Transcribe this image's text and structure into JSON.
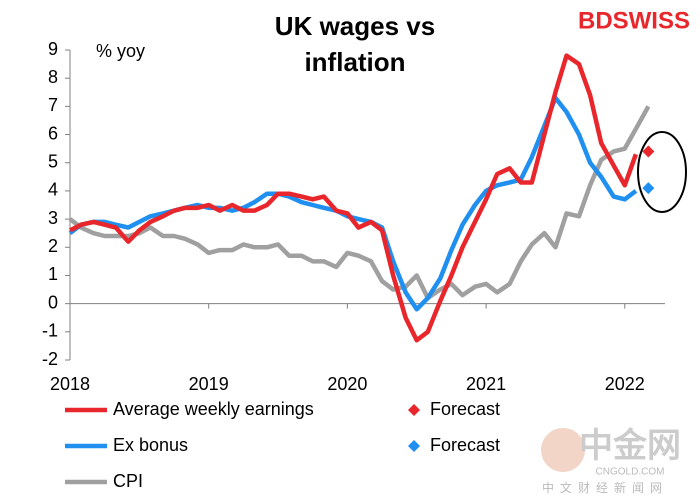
{
  "chart_data": {
    "type": "line",
    "title": "UK wages vs inflation",
    "y_unit_label": "% yoy",
    "brand": "BDSWISS",
    "watermark": {
      "main": "中金网",
      "domain": "CNGOLD.COM",
      "sub": "中文财经新闻网"
    },
    "x": [
      2018,
      2018.08,
      2018.17,
      2018.25,
      2018.33,
      2018.42,
      2018.5,
      2018.58,
      2018.67,
      2018.75,
      2018.83,
      2018.92,
      2019,
      2019.08,
      2019.17,
      2019.25,
      2019.33,
      2019.42,
      2019.5,
      2019.58,
      2019.67,
      2019.75,
      2019.83,
      2019.92,
      2020,
      2020.08,
      2020.17,
      2020.25,
      2020.33,
      2020.42,
      2020.5,
      2020.58,
      2020.67,
      2020.75,
      2020.83,
      2020.92,
      2021,
      2021.08,
      2021.17,
      2021.25,
      2021.33,
      2021.42,
      2021.5,
      2021.58,
      2021.67,
      2021.75,
      2021.83,
      2021.92,
      2022,
      2022.08,
      2022.17
    ],
    "series": [
      {
        "name": "Average weekly earnings",
        "color": "#e8262b",
        "marker": "line",
        "values": [
          2.6,
          2.8,
          2.9,
          2.8,
          2.7,
          2.2,
          2.6,
          2.9,
          3.1,
          3.3,
          3.4,
          3.4,
          3.5,
          3.3,
          3.5,
          3.3,
          3.3,
          3.5,
          3.9,
          3.9,
          3.8,
          3.7,
          3.8,
          3.3,
          3.2,
          2.7,
          2.9,
          2.6,
          1.0,
          -0.5,
          -1.3,
          -1.0,
          0.1,
          1.0,
          2.0,
          2.9,
          3.7,
          4.6,
          4.8,
          4.3,
          4.3,
          6.0,
          7.5,
          8.8,
          8.5,
          7.4,
          5.7,
          4.9,
          4.2,
          5.3,
          null
        ]
      },
      {
        "name": "Forecast",
        "color": "#e8262b",
        "marker": "diamond",
        "values": [
          null,
          null,
          null,
          null,
          null,
          null,
          null,
          null,
          null,
          null,
          null,
          null,
          null,
          null,
          null,
          null,
          null,
          null,
          null,
          null,
          null,
          null,
          null,
          null,
          null,
          null,
          null,
          null,
          null,
          null,
          null,
          null,
          null,
          null,
          null,
          null,
          null,
          null,
          null,
          null,
          null,
          null,
          null,
          null,
          null,
          null,
          null,
          null,
          null,
          null,
          5.4
        ]
      },
      {
        "name": "Ex bonus",
        "color": "#1f8ff0",
        "marker": "line",
        "values": [
          2.5,
          2.8,
          2.9,
          2.9,
          2.8,
          2.7,
          2.9,
          3.1,
          3.2,
          3.3,
          3.4,
          3.5,
          3.4,
          3.4,
          3.3,
          3.4,
          3.6,
          3.9,
          3.9,
          3.8,
          3.6,
          3.5,
          3.4,
          3.3,
          3.1,
          3.0,
          2.9,
          2.7,
          1.5,
          0.4,
          -0.2,
          0.2,
          0.9,
          1.9,
          2.8,
          3.5,
          4.0,
          4.2,
          4.3,
          4.4,
          5.2,
          6.3,
          7.3,
          6.8,
          6.0,
          5.0,
          4.5,
          3.8,
          3.7,
          4.0,
          null
        ]
      },
      {
        "name": "Forecast",
        "color": "#1f8ff0",
        "marker": "diamond",
        "values": [
          null,
          null,
          null,
          null,
          null,
          null,
          null,
          null,
          null,
          null,
          null,
          null,
          null,
          null,
          null,
          null,
          null,
          null,
          null,
          null,
          null,
          null,
          null,
          null,
          null,
          null,
          null,
          null,
          null,
          null,
          null,
          null,
          null,
          null,
          null,
          null,
          null,
          null,
          null,
          null,
          null,
          null,
          null,
          null,
          null,
          null,
          null,
          null,
          null,
          null,
          4.1
        ]
      },
      {
        "name": "CPI",
        "color": "#a0a0a0",
        "marker": "line",
        "values": [
          3.0,
          2.7,
          2.5,
          2.4,
          2.4,
          2.4,
          2.5,
          2.7,
          2.4,
          2.4,
          2.3,
          2.1,
          1.8,
          1.9,
          1.9,
          2.1,
          2.0,
          2.0,
          2.1,
          1.7,
          1.7,
          1.5,
          1.5,
          1.3,
          1.8,
          1.7,
          1.5,
          0.8,
          0.5,
          0.6,
          1.0,
          0.2,
          0.5,
          0.7,
          0.3,
          0.6,
          0.7,
          0.4,
          0.7,
          1.5,
          2.1,
          2.5,
          2.0,
          3.2,
          3.1,
          4.2,
          5.1,
          5.4,
          5.5,
          6.2,
          7.0
        ]
      }
    ],
    "xlim": [
      2018,
      2022.29
    ],
    "xticks": [
      2018,
      2019,
      2020,
      2021,
      2022
    ],
    "ylim": [
      -2,
      9
    ],
    "yticks": [
      -2,
      -1,
      0,
      1,
      2,
      3,
      4,
      5,
      6,
      7,
      8,
      9
    ],
    "grid": false,
    "legend": "bottom"
  }
}
